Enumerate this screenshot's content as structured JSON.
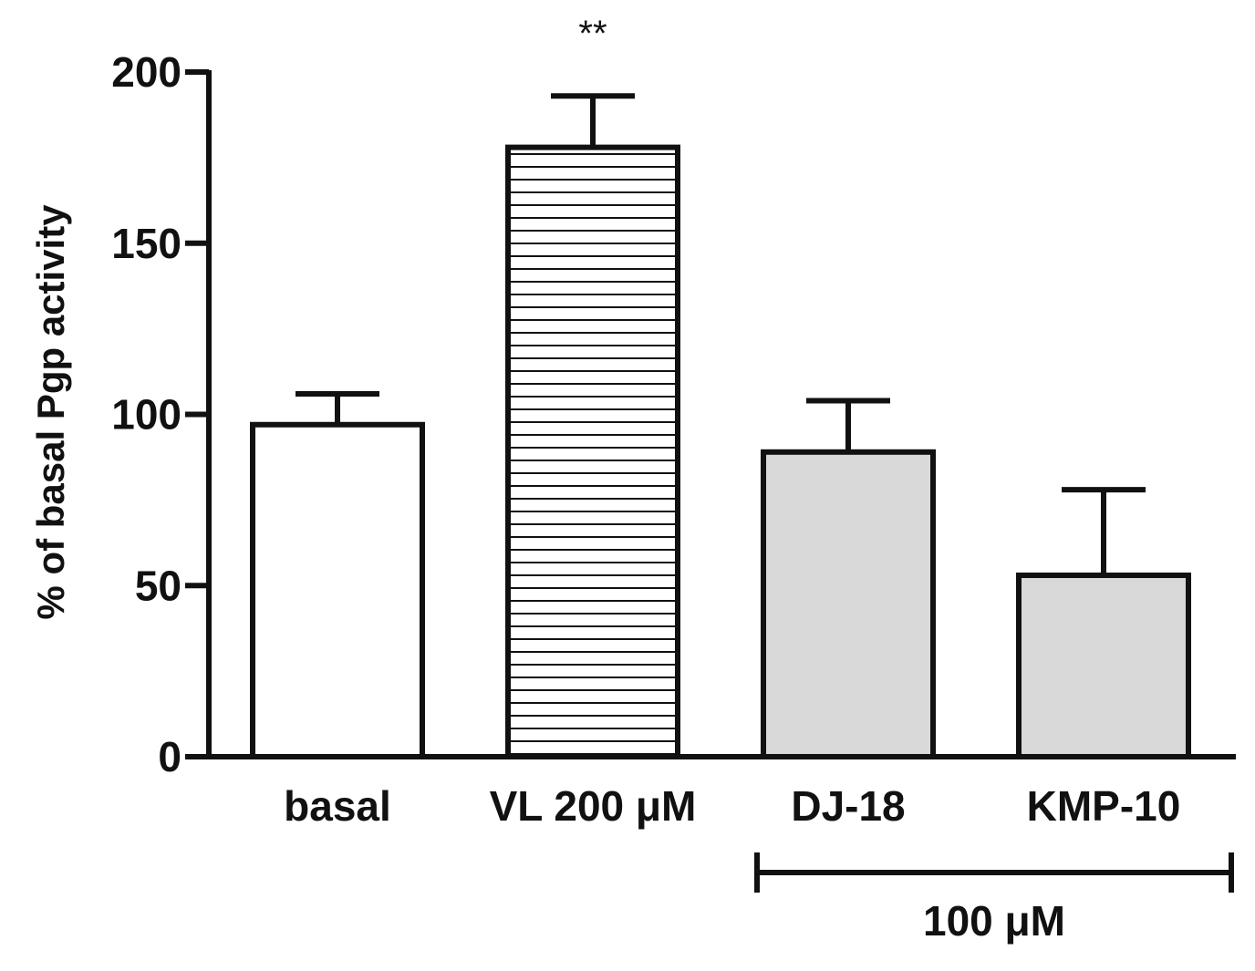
{
  "chart_data": {
    "type": "bar",
    "title": "",
    "xlabel": "",
    "ylabel": "% of basal Pgp activity",
    "ylim": [
      0,
      200
    ],
    "yticks": [
      0,
      50,
      100,
      150,
      200
    ],
    "grid": false,
    "categories": [
      "basal",
      "VL 200 μM",
      "DJ-18",
      "KMP-10"
    ],
    "values": [
      97,
      178,
      89,
      53
    ],
    "errors": [
      9,
      15,
      15,
      25
    ],
    "fills": [
      "white",
      "horizontal-stripes",
      "gray",
      "gray"
    ],
    "annotations": [
      {
        "category_index": 1,
        "text": "**"
      }
    ],
    "group_bracket": {
      "label": "100 μM",
      "from_index": 2,
      "to_index": 3
    }
  },
  "colors": {
    "ink": "#111111",
    "white_fill": "#ffffff",
    "gray_fill": "#d9d9d9",
    "stripe_bg": "#ffffff"
  }
}
